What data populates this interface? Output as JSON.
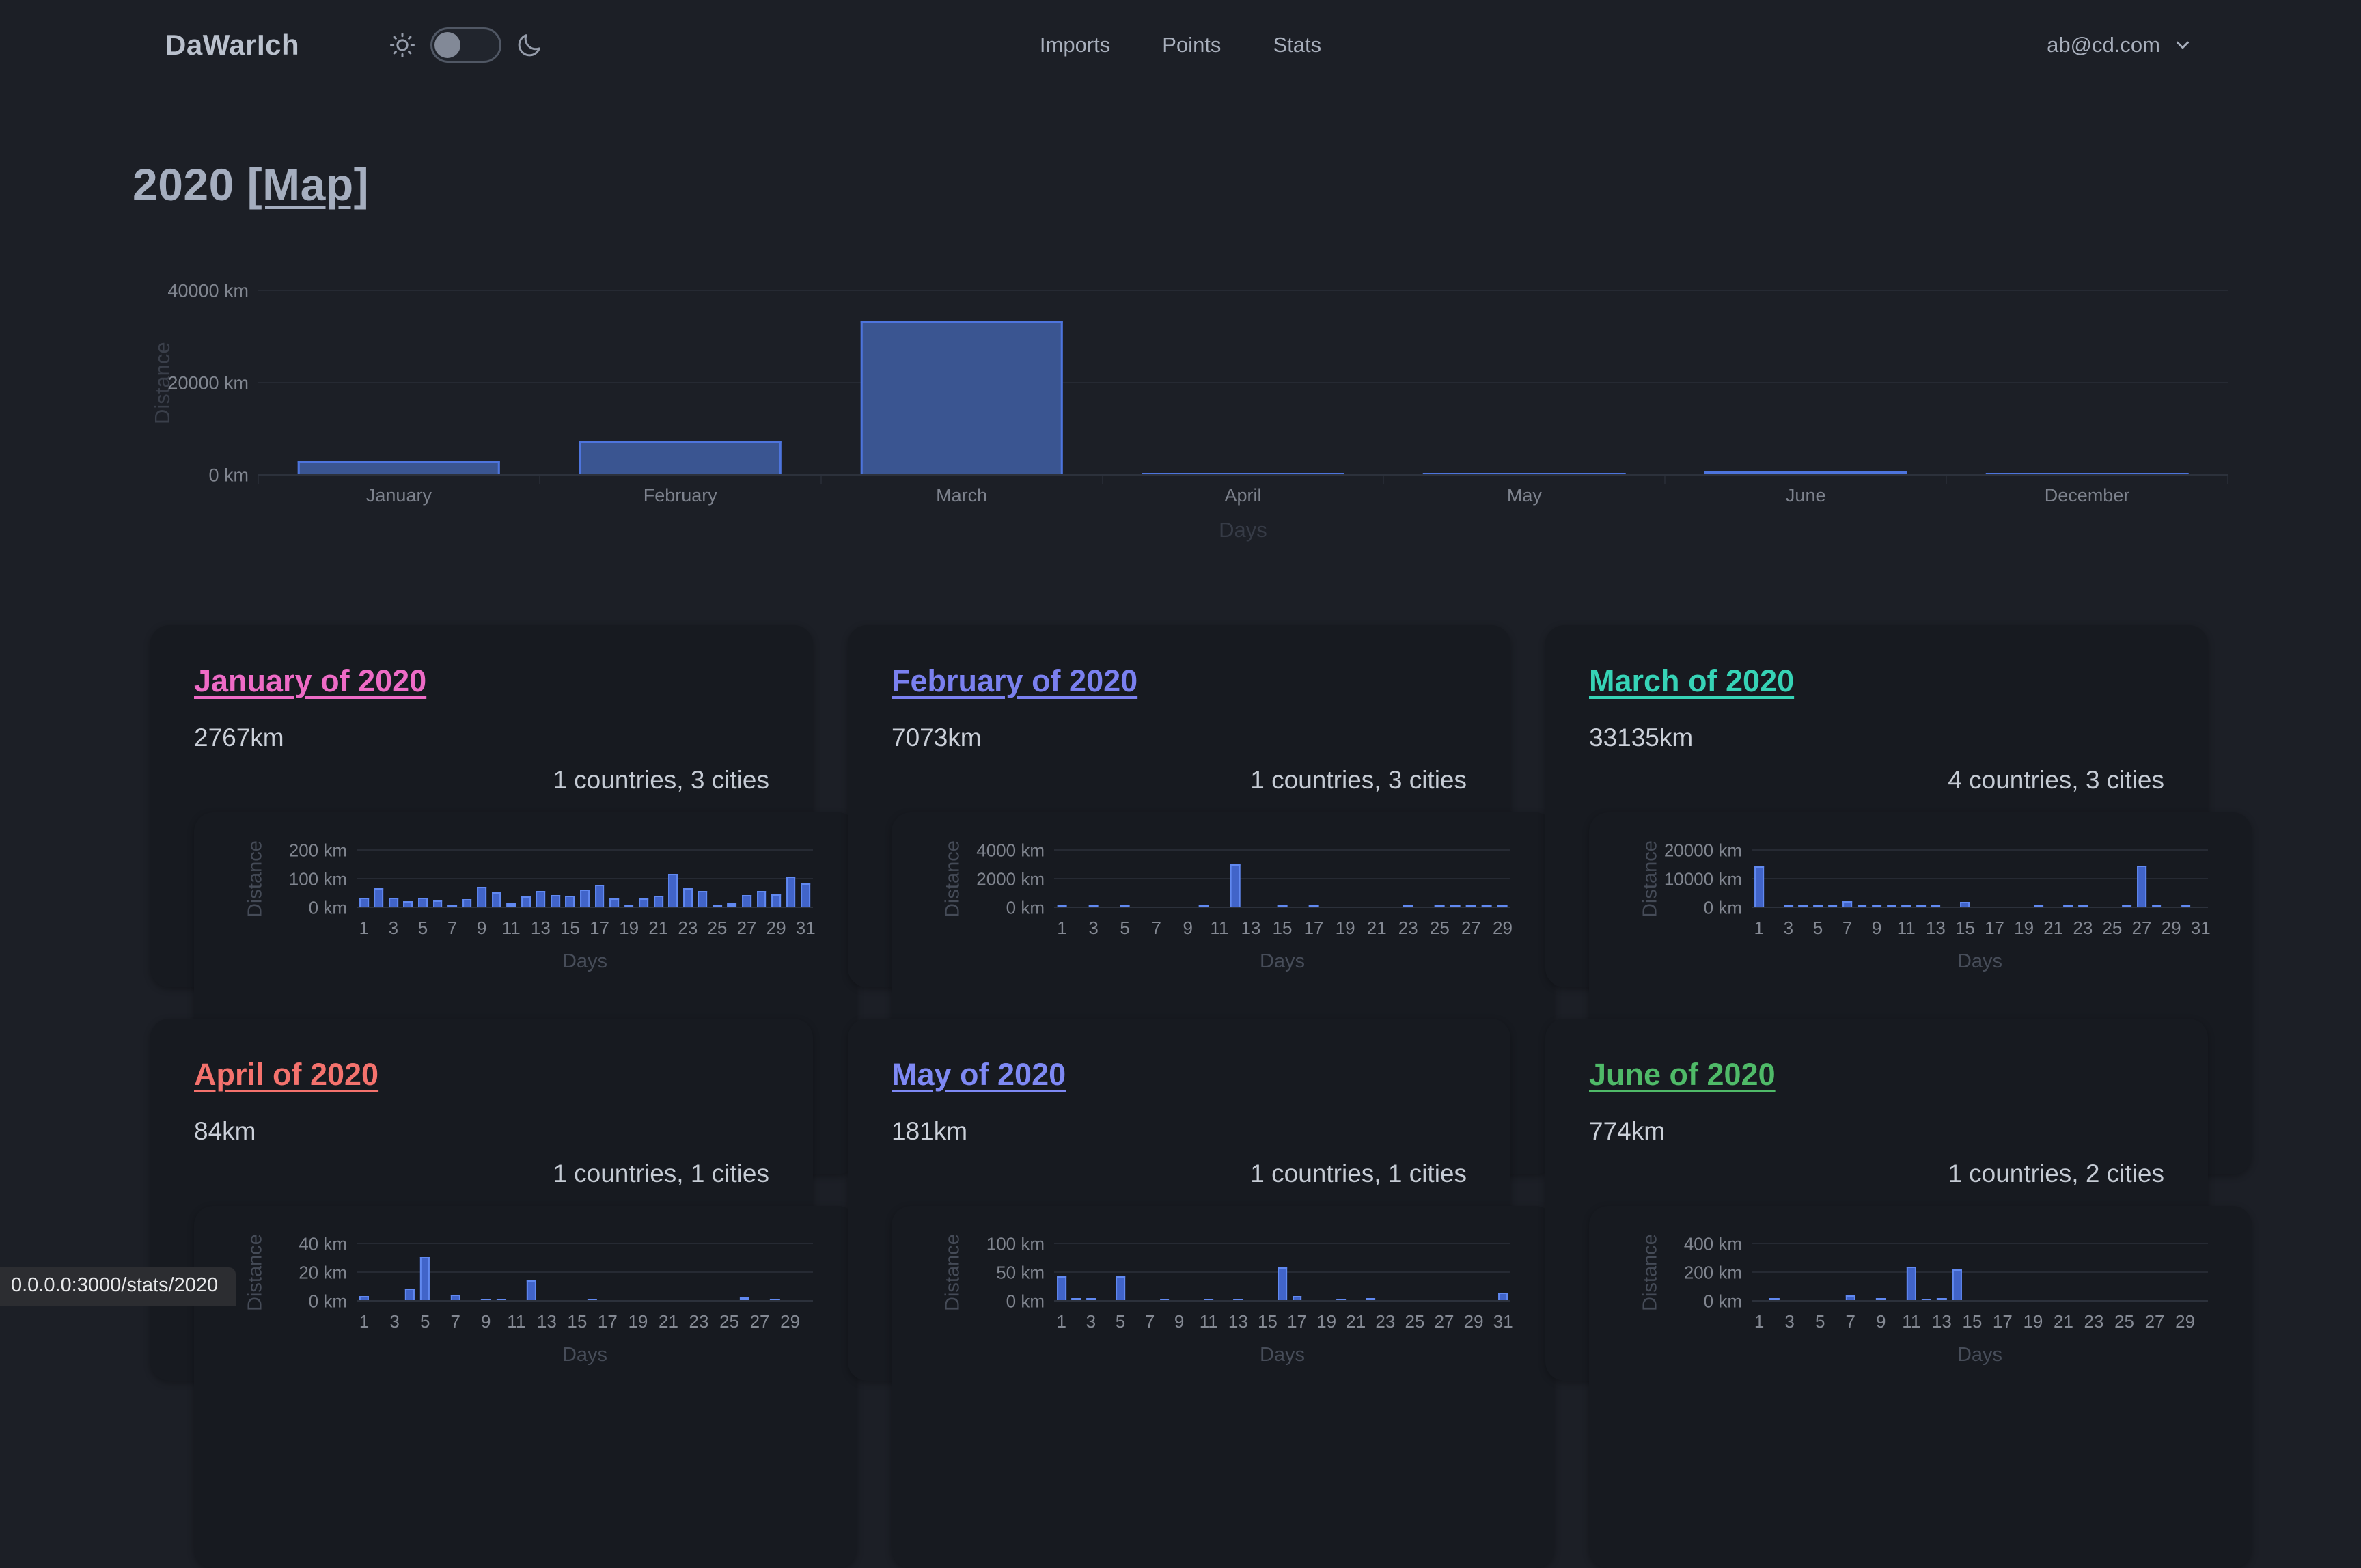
{
  "navbar": {
    "brand": "DaWarIch",
    "links": [
      "Imports",
      "Points",
      "Stats"
    ],
    "user_email": "ab@cd.com"
  },
  "page_title": {
    "year": "2020 ",
    "map_link": "[Map]"
  },
  "status_bar_url": "0.0.0.0:3000/stats/2020",
  "colors": {
    "main_bar_fill": "#3a5591",
    "main_bar_border": "#4d74dd",
    "card_bar_fill": "#4164c9",
    "card_bar_border": "#6189f0"
  },
  "cards": [
    {
      "title": "January of 2020",
      "distance": "2767km",
      "summary": "1 countries, 3 cities",
      "accent": "#ee6bc6"
    },
    {
      "title": "February of 2020",
      "distance": "7073km",
      "summary": "1 countries, 3 cities",
      "accent": "#7a80ef"
    },
    {
      "title": "March of 2020",
      "distance": "33135km",
      "summary": "4 countries, 3 cities",
      "accent": "#36d3b6"
    },
    {
      "title": "April of 2020",
      "distance": "84km",
      "summary": "1 countries, 1 cities",
      "accent": "#f4726d"
    },
    {
      "title": "May of 2020",
      "distance": "181km",
      "summary": "1 countries, 1 cities",
      "accent": "#7e89f4"
    },
    {
      "title": "June of 2020",
      "distance": "774km",
      "summary": "1 countries, 2 cities",
      "accent": "#4fba68"
    }
  ],
  "chart_data": [
    {
      "id": "distance-by-month",
      "type": "bar",
      "categories": [
        "January",
        "February",
        "March",
        "April",
        "May",
        "June",
        "December"
      ],
      "values": [
        2767,
        7073,
        33135,
        84,
        181,
        774,
        120
      ],
      "ylabel": "Distance",
      "xlabel": "Days",
      "ytick_labels": [
        "0 km",
        "20000 km",
        "40000 km"
      ],
      "ymax": 40000,
      "ylim": [
        0,
        40000
      ],
      "grid": true,
      "legend": "none"
    },
    {
      "id": "january-daily-distance",
      "type": "bar",
      "month": "January",
      "days": 31,
      "values": [
        30,
        65,
        30,
        20,
        30,
        22,
        8,
        25,
        68,
        50,
        12,
        35,
        55,
        40,
        38,
        60,
        75,
        28,
        3,
        28,
        38,
        115,
        65,
        55,
        3,
        13,
        40,
        55,
        42,
        105,
        80
      ],
      "ylabel": "Distance",
      "xlabel": "Days",
      "ytick_labels": [
        "0 km",
        "100 km",
        "200 km"
      ],
      "xtick_labels": [
        "1",
        "3",
        "5",
        "7",
        "9",
        "11",
        "13",
        "15",
        "17",
        "19",
        "21",
        "23",
        "25",
        "27",
        "29",
        "31"
      ],
      "ymax": 200,
      "ylim": [
        0,
        200
      ]
    },
    {
      "id": "february-daily-distance",
      "type": "bar",
      "month": "February",
      "days": 29,
      "values": [
        15,
        0,
        20,
        0,
        10,
        0,
        0,
        0,
        0,
        5,
        0,
        2950,
        0,
        0,
        20,
        0,
        15,
        0,
        0,
        0,
        0,
        0,
        25,
        0,
        30,
        20,
        15,
        20,
        25
      ],
      "ylabel": "Distance",
      "xlabel": "Days",
      "ytick_labels": [
        "0 km",
        "2000 km",
        "4000 km"
      ],
      "xtick_labels": [
        "1",
        "3",
        "5",
        "7",
        "9",
        "11",
        "13",
        "15",
        "17",
        "19",
        "21",
        "23",
        "25",
        "27",
        "29"
      ],
      "ymax": 4000,
      "ylim": [
        0,
        4000
      ]
    },
    {
      "id": "march-daily-distance",
      "type": "bar",
      "month": "March",
      "days": 31,
      "values": [
        14000,
        0,
        150,
        100,
        80,
        100,
        1800,
        120,
        100,
        100,
        120,
        100,
        80,
        0,
        1700,
        0,
        0,
        0,
        0,
        80,
        0,
        100,
        120,
        0,
        0,
        120,
        14200,
        100,
        0,
        80,
        0
      ],
      "ylabel": "Distance",
      "xlabel": "Days",
      "ytick_labels": [
        "0 km",
        "10000 km",
        "20000 km"
      ],
      "xtick_labels": [
        "1",
        "3",
        "5",
        "7",
        "9",
        "11",
        "13",
        "15",
        "17",
        "19",
        "21",
        "23",
        "25",
        "27",
        "29",
        "31"
      ],
      "ymax": 20000,
      "ylim": [
        0,
        20000
      ]
    },
    {
      "id": "april-daily-distance",
      "type": "bar",
      "month": "April",
      "days": 30,
      "values": [
        3,
        0,
        0,
        8,
        30,
        0,
        4,
        0,
        1,
        1,
        0,
        14,
        0,
        0,
        0,
        1,
        0,
        0,
        0,
        0,
        0,
        0,
        0,
        0,
        0,
        2,
        0,
        1,
        0,
        0
      ],
      "ylabel": "Distance",
      "xlabel": "Days",
      "ytick_labels": [
        "0 km",
        "20 km",
        "40 km"
      ],
      "xtick_labels": [
        "1",
        "3",
        "5",
        "7",
        "9",
        "11",
        "13",
        "15",
        "17",
        "19",
        "21",
        "23",
        "25",
        "27",
        "29"
      ],
      "ymax": 40,
      "ylim": [
        0,
        40
      ]
    },
    {
      "id": "may-daily-distance",
      "type": "bar",
      "month": "May",
      "days": 31,
      "values": [
        42,
        3,
        3,
        0,
        42,
        0,
        0,
        1,
        0,
        0,
        1,
        0,
        1,
        0,
        0,
        57,
        7,
        0,
        0,
        1,
        0,
        4,
        0,
        0,
        0,
        0,
        0,
        0,
        0,
        0,
        13
      ],
      "ylabel": "Distance",
      "xlabel": "Days",
      "ytick_labels": [
        "0 km",
        "50 km",
        "100 km"
      ],
      "xtick_labels": [
        "1",
        "3",
        "5",
        "7",
        "9",
        "11",
        "13",
        "15",
        "17",
        "19",
        "21",
        "23",
        "25",
        "27",
        "29",
        "31"
      ],
      "ymax": 100,
      "ylim": [
        0,
        100
      ]
    },
    {
      "id": "june-daily-distance",
      "type": "bar",
      "month": "June",
      "days": 30,
      "values": [
        0,
        15,
        0,
        0,
        0,
        0,
        35,
        0,
        15,
        0,
        235,
        3,
        15,
        215,
        0,
        0,
        0,
        0,
        0,
        0,
        0,
        0,
        0,
        0,
        0,
        0,
        0,
        0,
        0,
        0
      ],
      "ylabel": "Distance",
      "xlabel": "Days",
      "ytick_labels": [
        "0 km",
        "200 km",
        "400 km"
      ],
      "xtick_labels": [
        "1",
        "3",
        "5",
        "7",
        "9",
        "11",
        "13",
        "15",
        "17",
        "19",
        "21",
        "23",
        "25",
        "27",
        "29"
      ],
      "ymax": 400,
      "ylim": [
        0,
        400
      ]
    }
  ]
}
